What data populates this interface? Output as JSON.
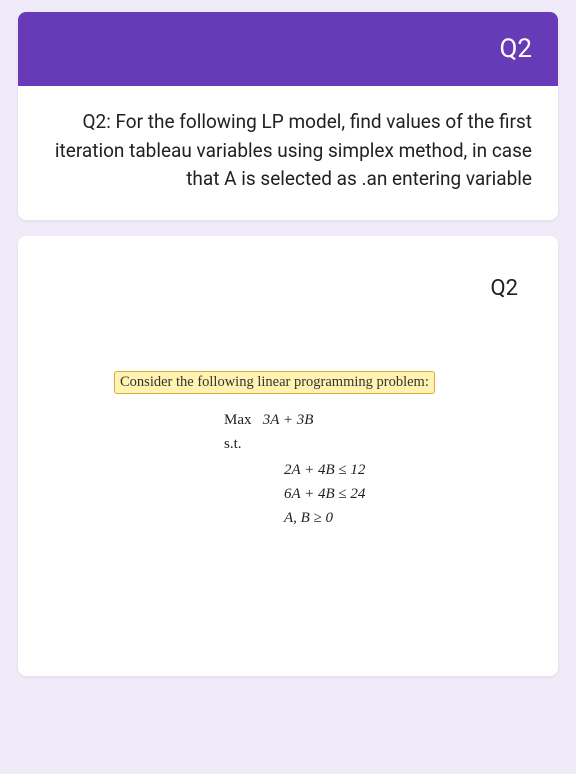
{
  "colors": {
    "page_bg": "#f0ebf8",
    "card_bg": "#ffffff",
    "header_bg": "#673ab7",
    "header_text": "#ffffff",
    "body_text": "#202124",
    "highlight_bg": "#fef3b0",
    "highlight_border": "#e0a838"
  },
  "header": {
    "title": "Q2"
  },
  "card1": {
    "question": "Q2: For the following LP model, find values of the first iteration tableau variables using simplex method, in case that A is selected as .an entering variable"
  },
  "card2": {
    "label": "Q2",
    "highlight_text": "Consider the following linear programming problem:",
    "lp": {
      "objective_label": "Max",
      "objective_expr": "3A + 3B",
      "st_label": "s.t.",
      "constraint1": "2A + 4B ≤ 12",
      "constraint2": "6A + 4B ≤ 24",
      "nonneg": "A, B ≥ 0"
    }
  }
}
